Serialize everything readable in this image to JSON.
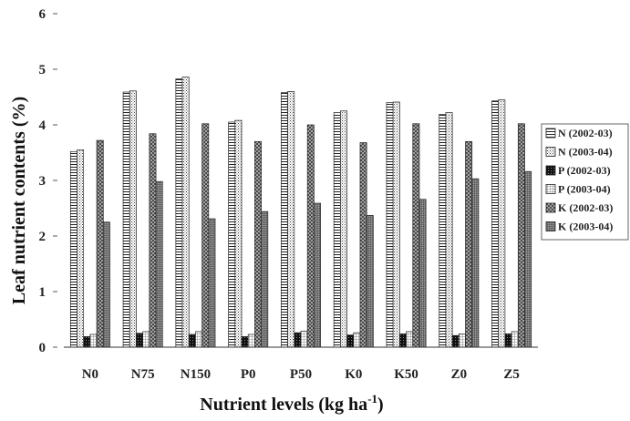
{
  "chart_data": {
    "type": "bar",
    "title": "",
    "xlabel": "Nutrient levels (kg ha",
    "xlabel_sup": "-1",
    "xlabel_tail": ")",
    "ylabel": "Leaf nutrient contents (%)",
    "ylim": [
      0,
      6
    ],
    "yticks": [
      "0",
      "1",
      "2",
      "3",
      "4",
      "5",
      "6"
    ],
    "grid": false,
    "legend_position": "right",
    "categories": [
      "N0",
      "N75",
      "N150",
      "P0",
      "P50",
      "K0",
      "K50",
      "Z0",
      "Z5"
    ],
    "series": [
      {
        "name": "N (2002-03)",
        "pattern": "hlines",
        "values": [
          3.52,
          4.59,
          4.83,
          4.05,
          4.58,
          4.22,
          4.4,
          4.19,
          4.43
        ]
      },
      {
        "name": "N (2003-04)",
        "pattern": "dots",
        "values": [
          3.55,
          4.61,
          4.86,
          4.08,
          4.6,
          4.25,
          4.41,
          4.22,
          4.45
        ]
      },
      {
        "name": "P (2002-03)",
        "pattern": "black-checker",
        "values": [
          0.19,
          0.25,
          0.23,
          0.19,
          0.26,
          0.22,
          0.24,
          0.21,
          0.24
        ]
      },
      {
        "name": "P (2003-04)",
        "pattern": "light-grid",
        "values": [
          0.23,
          0.28,
          0.28,
          0.23,
          0.29,
          0.26,
          0.28,
          0.24,
          0.28
        ]
      },
      {
        "name": "K (2002-03)",
        "pattern": "checker",
        "values": [
          3.72,
          3.84,
          4.02,
          3.7,
          4.0,
          3.68,
          4.02,
          3.7,
          4.02
        ]
      },
      {
        "name": "K (2003-04)",
        "pattern": "dense-grey",
        "values": [
          2.25,
          2.98,
          2.31,
          2.44,
          2.59,
          2.37,
          2.66,
          3.03,
          3.16
        ]
      }
    ]
  }
}
